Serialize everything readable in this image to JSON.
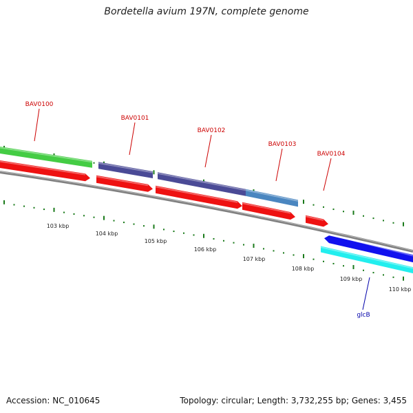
{
  "title": "Bordetella avium 197N, complete genome",
  "footer": {
    "accession": "Accession: NC_010645",
    "summary": "Topology: circular; Length: 3,732,255 bp; Genes: 3,455"
  },
  "colors": {
    "backbone": "#808080",
    "tick": "#1a7a1a",
    "label_red": "#cc0000",
    "label_blue": "#0000aa"
  },
  "gene_labels": [
    {
      "id": "BAV0100",
      "text": "BAV0100",
      "color": "#cc0000"
    },
    {
      "id": "BAV0101",
      "text": "BAV0101",
      "color": "#cc0000"
    },
    {
      "id": "BAV0102",
      "text": "BAV0102",
      "color": "#cc0000"
    },
    {
      "id": "BAV0103",
      "text": "BAV0103",
      "color": "#cc0000"
    },
    {
      "id": "BAV0104",
      "text": "BAV0104",
      "color": "#cc0000"
    },
    {
      "id": "glcB",
      "text": "glcB",
      "color": "#0000aa"
    }
  ],
  "scale_labels": [
    "103 kbp",
    "104 kbp",
    "105 kbp",
    "106 kbp",
    "107 kbp",
    "108 kbp",
    "109 kbp",
    "110 kbp"
  ],
  "features": [
    {
      "name": "gene-bar-green",
      "color": "#44cc44",
      "strand": "forward"
    },
    {
      "name": "gene-bar-purple-1",
      "color": "#4a4a96",
      "strand": "forward"
    },
    {
      "name": "gene-bar-purple-2",
      "color": "#4a4a96",
      "strand": "forward"
    },
    {
      "name": "gene-bar-steelblue",
      "color": "#4a86c0",
      "strand": "forward"
    },
    {
      "name": "cds-arrow-1",
      "color": "#ee1111",
      "strand": "forward"
    },
    {
      "name": "cds-arrow-2",
      "color": "#ee1111",
      "strand": "forward"
    },
    {
      "name": "cds-arrow-3",
      "color": "#ee1111",
      "strand": "forward"
    },
    {
      "name": "cds-arrow-4",
      "color": "#ee1111",
      "strand": "forward"
    },
    {
      "name": "cds-arrow-5",
      "color": "#ee1111",
      "strand": "forward"
    },
    {
      "name": "cds-arrow-glcB",
      "color": "#1111ee",
      "strand": "reverse"
    },
    {
      "name": "gene-bar-cyan",
      "color": "#22eeee",
      "strand": "reverse"
    }
  ]
}
